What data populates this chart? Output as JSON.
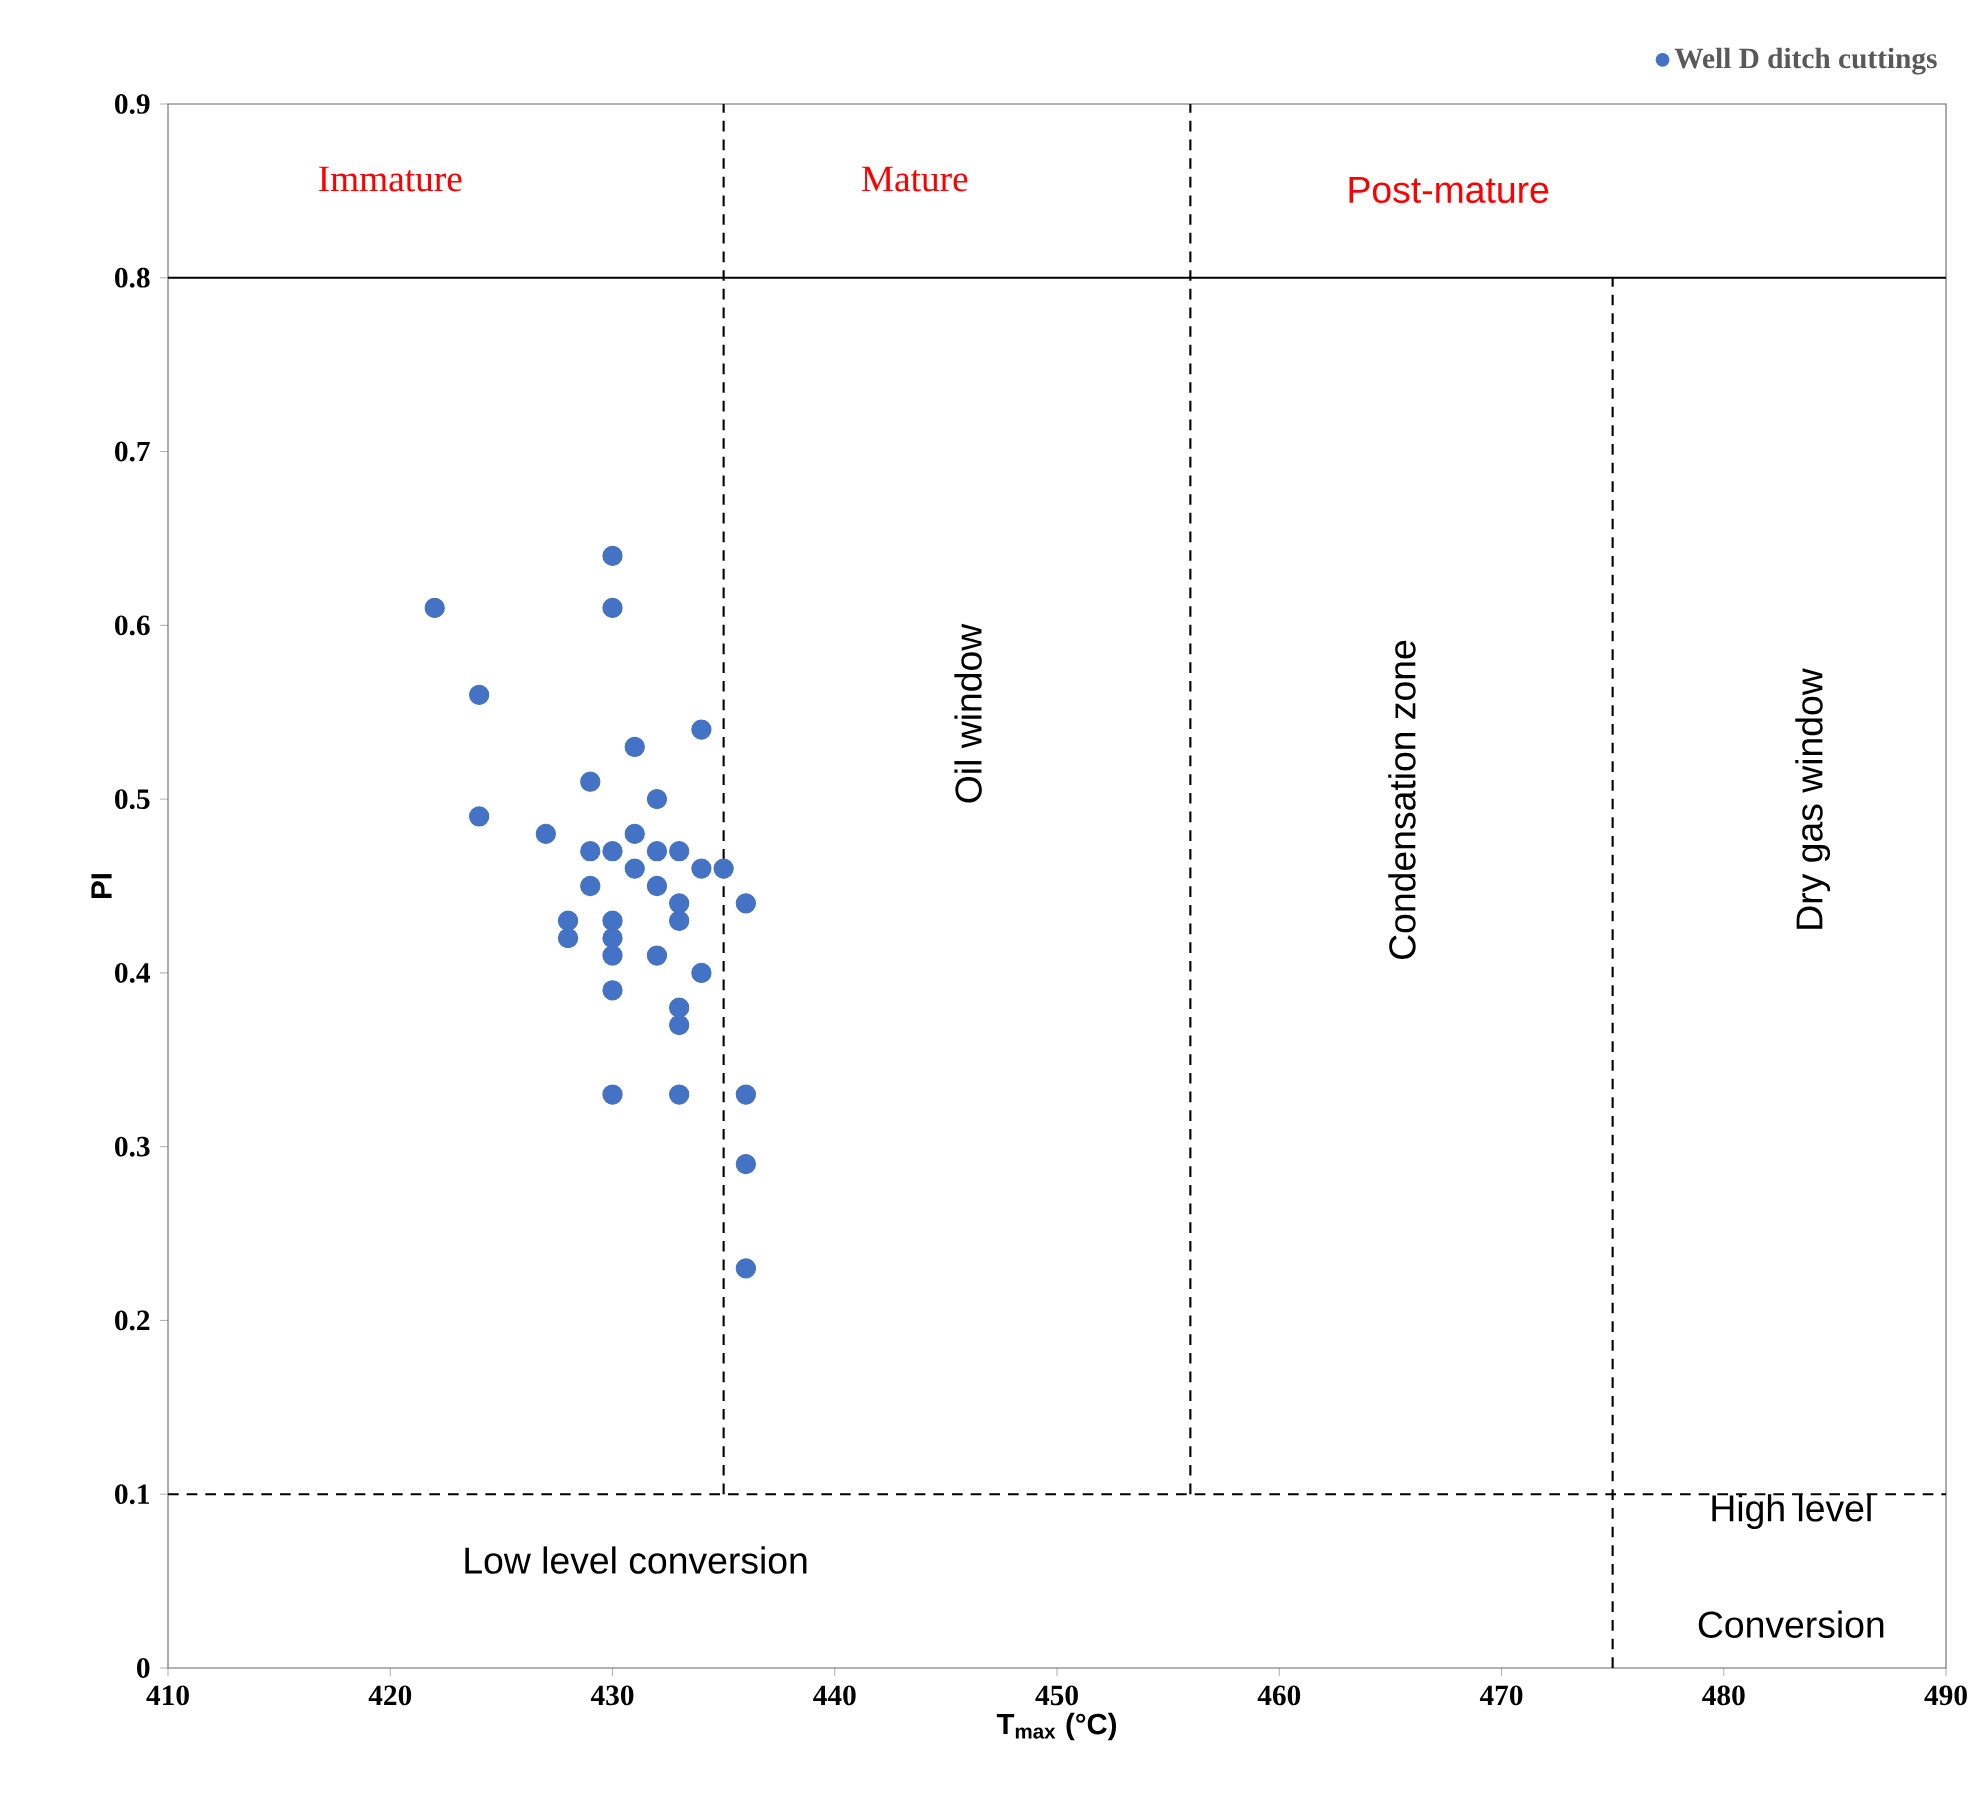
{
  "chart_data": {
    "type": "scatter",
    "xlabel": "T$_{max}$ (°C)",
    "ylabel": "PI",
    "xlim": [
      410,
      490
    ],
    "ylim": [
      0,
      0.9
    ],
    "xticks": [
      410,
      420,
      430,
      440,
      450,
      460,
      470,
      480,
      490
    ],
    "yticks": [
      0,
      0.1,
      0.2,
      0.3,
      0.4,
      0.5,
      0.6,
      0.7,
      0.8,
      0.9
    ],
    "legend": "top right",
    "grid": false,
    "series": [
      {
        "name": "Well D ditch cuttings",
        "marker": "circle",
        "color": "#4472c4",
        "x": [
          430,
          422,
          430,
          424,
          434,
          431,
          429,
          432,
          424,
          427,
          431,
          429,
          430,
          432,
          433,
          431,
          434,
          435,
          429,
          432,
          436,
          433,
          433,
          428,
          428,
          430,
          430,
          430,
          432,
          434,
          430,
          433,
          433,
          430,
          433,
          436,
          436,
          436
        ],
        "values": [
          0.64,
          0.61,
          0.61,
          0.56,
          0.54,
          0.53,
          0.51,
          0.5,
          0.49,
          0.48,
          0.48,
          0.47,
          0.47,
          0.47,
          0.47,
          0.46,
          0.46,
          0.46,
          0.45,
          0.45,
          0.44,
          0.44,
          0.43,
          0.43,
          0.42,
          0.43,
          0.42,
          0.41,
          0.41,
          0.4,
          0.39,
          0.38,
          0.37,
          0.33,
          0.33,
          0.33,
          0.29,
          0.23
        ]
      },
      {
        "type": "line",
        "marker": "none",
        "line_style": "solid",
        "color": "#000000",
        "x": [
          410,
          490
        ],
        "values": [
          0.8,
          0.8
        ]
      },
      {
        "type": "line",
        "marker": "none",
        "line_style": "dashed",
        "color": "#000000",
        "x": [
          410,
          490
        ],
        "values": [
          0.1,
          0.1
        ]
      },
      {
        "type": "line",
        "marker": "none",
        "line_style": "dashed",
        "color": "#000000",
        "x": [
          435,
          435
        ],
        "values": [
          0.1,
          0.9
        ]
      },
      {
        "type": "line",
        "marker": "none",
        "line_style": "dashed",
        "color": "#000000",
        "x": [
          456,
          456
        ],
        "values": [
          0.1,
          0.9
        ]
      },
      {
        "type": "line",
        "marker": "none",
        "line_style": "dashed",
        "color": "#000000",
        "x": [
          475,
          475
        ],
        "values": [
          0,
          0.8
        ]
      }
    ],
    "annotations": [
      "Immature",
      "Mature",
      "Post-mature",
      "Oil window",
      "Condensation zone",
      "Dry gas window",
      "Low level conversion",
      "High level",
      "Conversion"
    ]
  }
}
